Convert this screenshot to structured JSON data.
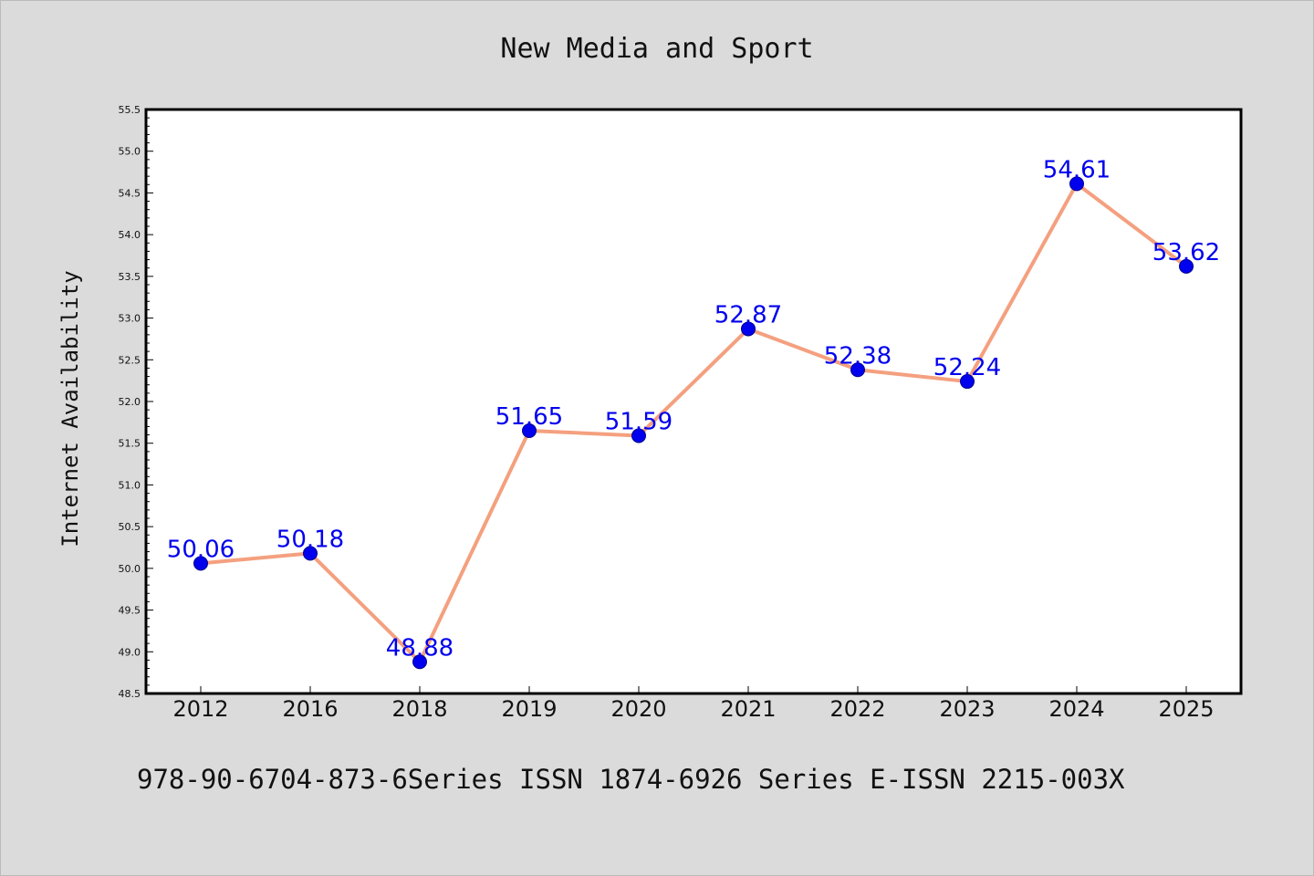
{
  "chart_data": {
    "type": "line",
    "title": "New Media and Sport",
    "xlabel": "",
    "ylabel": "Internet Availability",
    "footer": "978-90-6704-873-6Series ISSN 1874-6926 Series E-ISSN 2215-003X",
    "categories": [
      "2012",
      "2016",
      "2018",
      "2019",
      "2020",
      "2021",
      "2022",
      "2023",
      "2024",
      "2025"
    ],
    "series": [
      {
        "values": [
          50.06,
          50.18,
          48.88,
          51.65,
          51.59,
          52.87,
          52.38,
          52.24,
          54.61,
          53.62
        ],
        "labels": [
          "50.06",
          "50.18",
          "48.88",
          "51.65",
          "51.59",
          "52.87",
          "52.38",
          "52.24",
          "54.61",
          "53.62"
        ]
      }
    ],
    "ylim": [
      48.5,
      55.5
    ],
    "yticks": [
      "48.5",
      "49.0",
      "49.5",
      "50.0",
      "50.5",
      "51.0",
      "51.5",
      "52.0",
      "52.5",
      "53.0",
      "53.5",
      "54.0",
      "54.5",
      "55.0",
      "55.5"
    ],
    "grid": false,
    "colors": {
      "line": "#f4a07f",
      "marker": "#0000ee",
      "label": "#0000ee",
      "background": "#dbdbdb",
      "plot_background": "#ffffff",
      "axis": "#000000"
    }
  }
}
